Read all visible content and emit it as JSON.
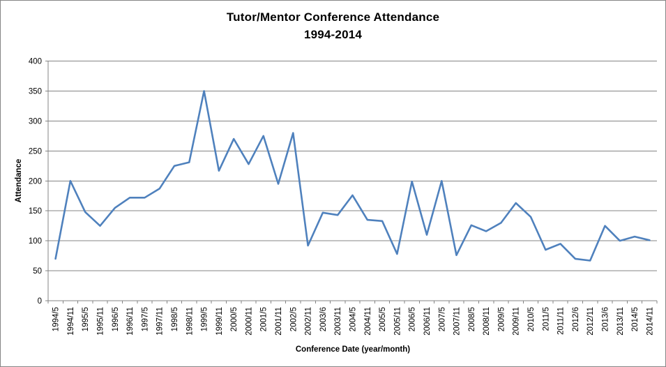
{
  "chart_data": {
    "type": "line",
    "title": "Tutor/Mentor Conference Attendance",
    "subtitle": "1994-2014",
    "xlabel": "Conference Date (year/month)",
    "ylabel": "Attendance",
    "ylim": [
      0,
      400
    ],
    "ytick_step": 50,
    "ytick_labels": [
      "0",
      "50",
      "100",
      "150",
      "200",
      "250",
      "300",
      "350",
      "400"
    ],
    "grid": true,
    "legend_position": "none",
    "categories": [
      "1994/5",
      "1994/11",
      "1995/5",
      "1995/11",
      "1996/5",
      "1996/11",
      "1997/5",
      "1997/11",
      "1998/5",
      "1998/11",
      "1999/5",
      "1999/11",
      "2000/5",
      "2000/11",
      "2001/5",
      "2001/11",
      "2002/5",
      "2002/11",
      "2003/6",
      "2003/11",
      "2004/5",
      "2004/11",
      "2005/5",
      "2005/11",
      "2006/5",
      "2006/11",
      "2007/5",
      "2007/11",
      "2008/5",
      "2008/11",
      "2009/5",
      "2009/11",
      "2010/5",
      "2011/5",
      "2011/11",
      "2012/6",
      "2012/11",
      "2013/6",
      "2013/11",
      "2014/5",
      "2014/11"
    ],
    "series": [
      {
        "name": "Attendance",
        "values": [
          70,
          200,
          148,
          125,
          155,
          172,
          172,
          187,
          225,
          231,
          350,
          217,
          270,
          228,
          275,
          195,
          280,
          92,
          147,
          143,
          176,
          135,
          133,
          78,
          199,
          110,
          200,
          76,
          126,
          116,
          130,
          163,
          140,
          85,
          95,
          70,
          67,
          125,
          100,
          107,
          101
        ]
      }
    ],
    "colors": {
      "line": "#4F81BD",
      "gridline": "#848484",
      "axis": "#848484",
      "text": "#000000",
      "background": "#FFFFFF",
      "frame_border": "#858585"
    }
  }
}
